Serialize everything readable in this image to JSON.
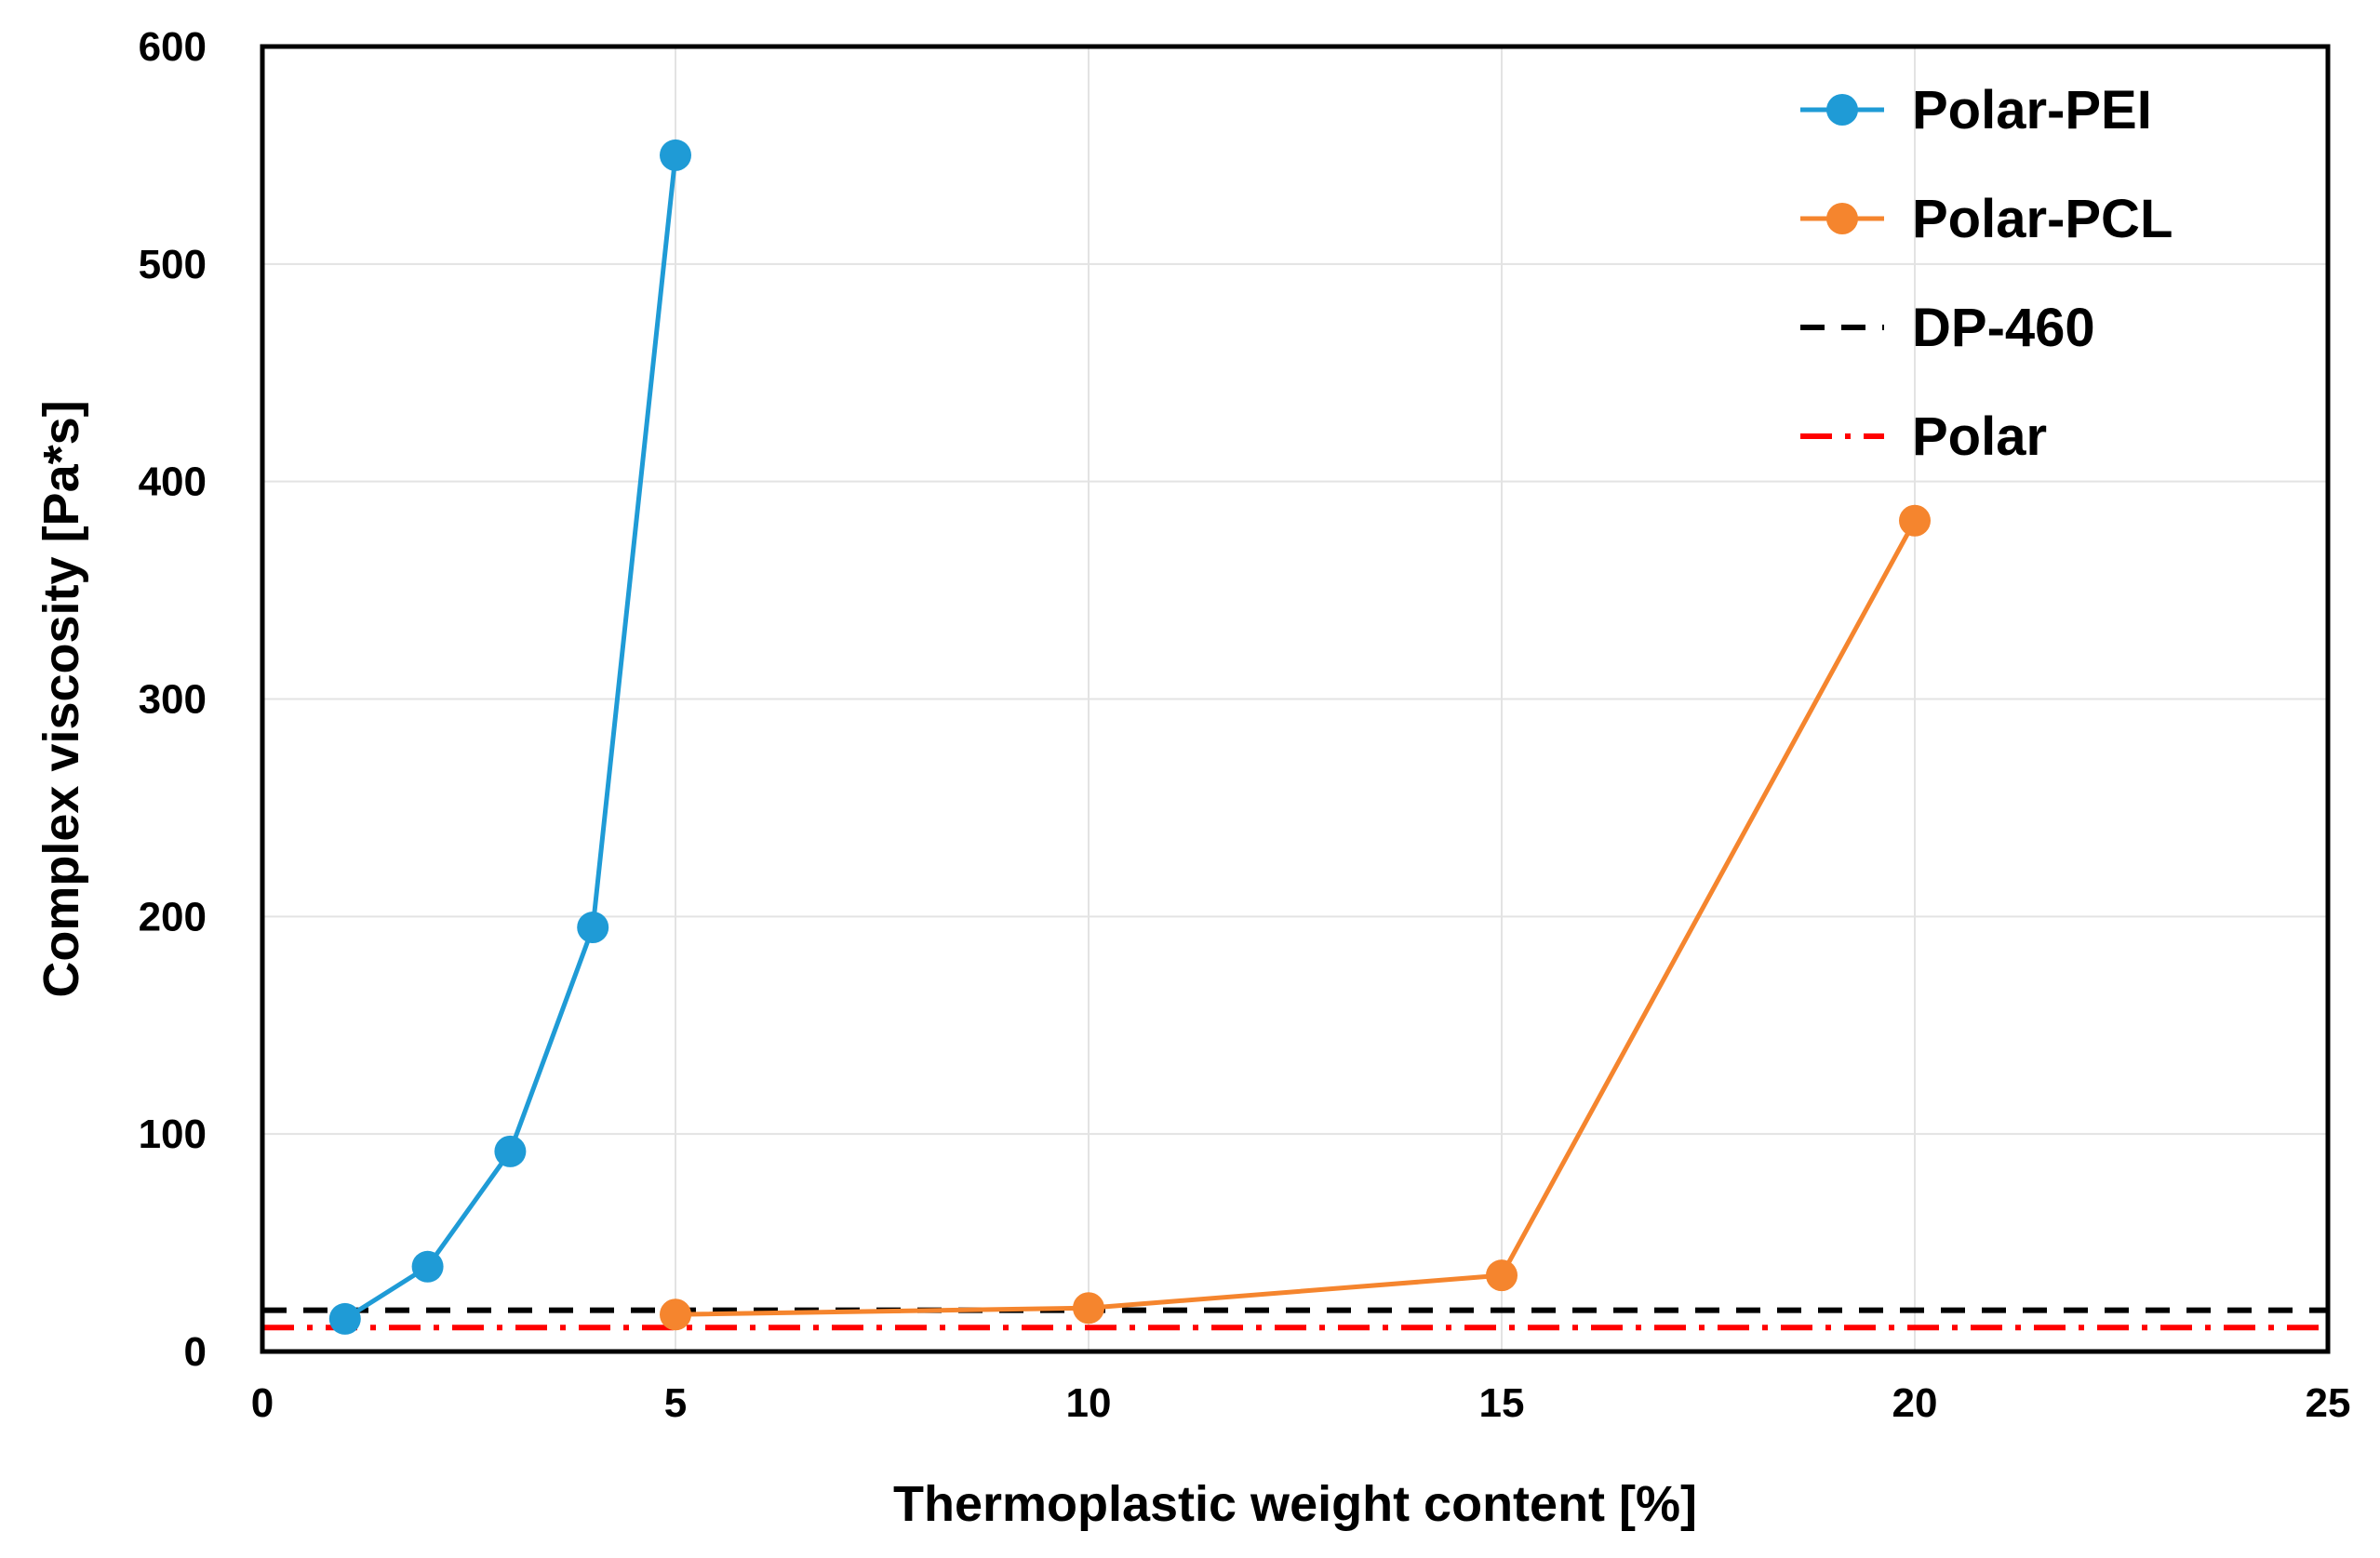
{
  "chart_data": {
    "type": "line",
    "title": "",
    "xlabel": "Thermoplastic weight content [%]",
    "ylabel": "Complex viscosity [Pa*s]",
    "xlim": [
      0,
      25
    ],
    "ylim": [
      0,
      600
    ],
    "xticks": [
      0,
      5,
      10,
      15,
      20,
      25
    ],
    "yticks": [
      0,
      100,
      200,
      300,
      400,
      500,
      600
    ],
    "grid": true,
    "legend_position": "top-right",
    "series": [
      {
        "name": "Polar-PEI",
        "color": "#1f9bd6",
        "style": "solid-markers",
        "x": [
          1,
          2,
          3,
          4,
          5
        ],
        "y": [
          15,
          39,
          92,
          195,
          550
        ]
      },
      {
        "name": "Polar-PCL",
        "color": "#f5852e",
        "style": "solid-markers",
        "x": [
          5,
          10,
          15,
          20
        ],
        "y": [
          17,
          20,
          35,
          382
        ]
      },
      {
        "name": "DP-460",
        "color": "#000000",
        "style": "dashed",
        "x": [
          0,
          25
        ],
        "y": [
          19,
          19
        ]
      },
      {
        "name": "Polar",
        "color": "#ff0000",
        "style": "dash-dot",
        "x": [
          0,
          25
        ],
        "y": [
          11,
          11
        ]
      }
    ]
  }
}
